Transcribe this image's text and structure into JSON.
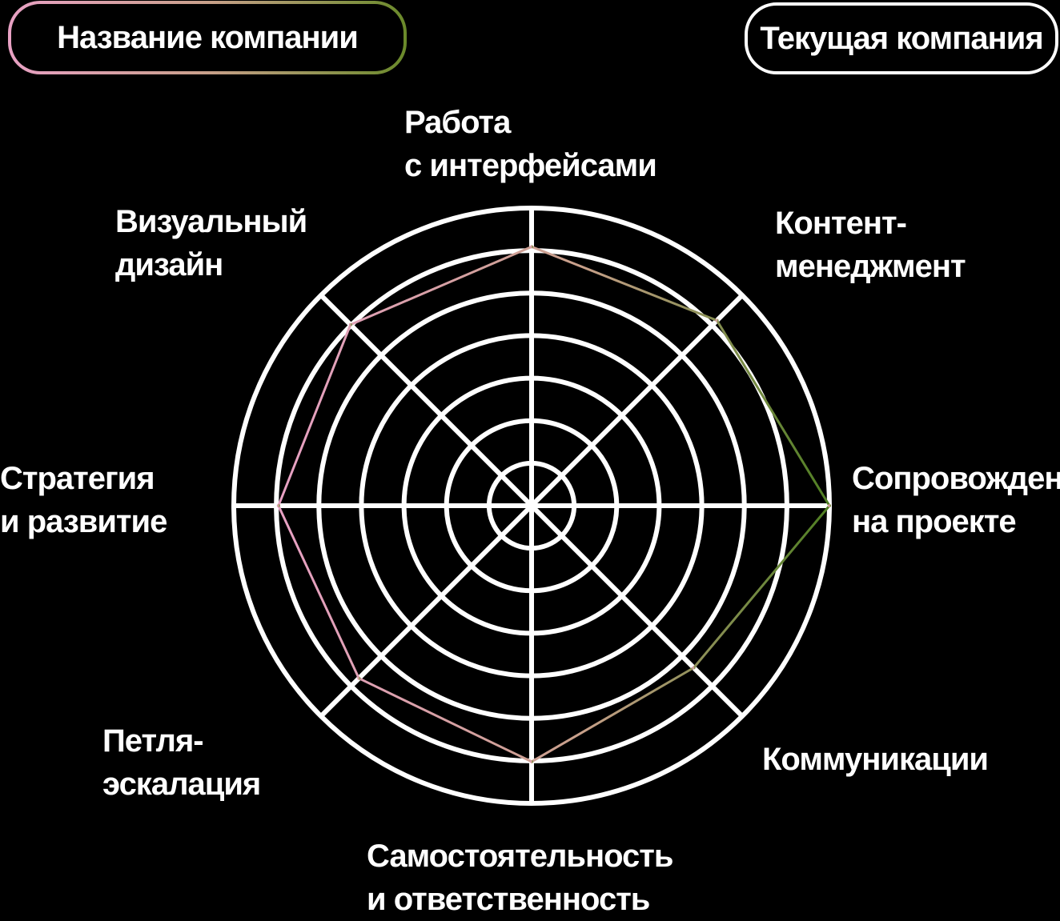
{
  "legend": {
    "series_a_label": "Название компании",
    "series_b_label": "Текущая компания"
  },
  "colors": {
    "background": "#000000",
    "grid": "#ffffff",
    "series_a_start": "#e8a1c4",
    "series_a_mid": "#c8a08a",
    "series_a_end": "#4f7f22"
  },
  "chart_data": {
    "type": "radar",
    "rmax": 10,
    "rings": 7,
    "axes": [
      {
        "line1": "Работа",
        "line2": "с интерфейсами"
      },
      {
        "line1": "Контент-",
        "line2": "менеджмент"
      },
      {
        "line1": "Сопровождение",
        "line2": "на проекте"
      },
      {
        "line1": "Коммуникации",
        "line2": ""
      },
      {
        "line1": "Самостоятельность",
        "line2": "и ответственность"
      },
      {
        "line1": "Петля-",
        "line2": "эскалация"
      },
      {
        "line1": "Стратегия",
        "line2": "и развитие"
      },
      {
        "line1": "Визуальный",
        "line2": "дизайн"
      }
    ],
    "series": [
      {
        "name": "Название компании",
        "values": [
          8.7,
          8.8,
          10,
          7.7,
          8.6,
          8.2,
          8.5,
          8.6
        ]
      }
    ]
  }
}
